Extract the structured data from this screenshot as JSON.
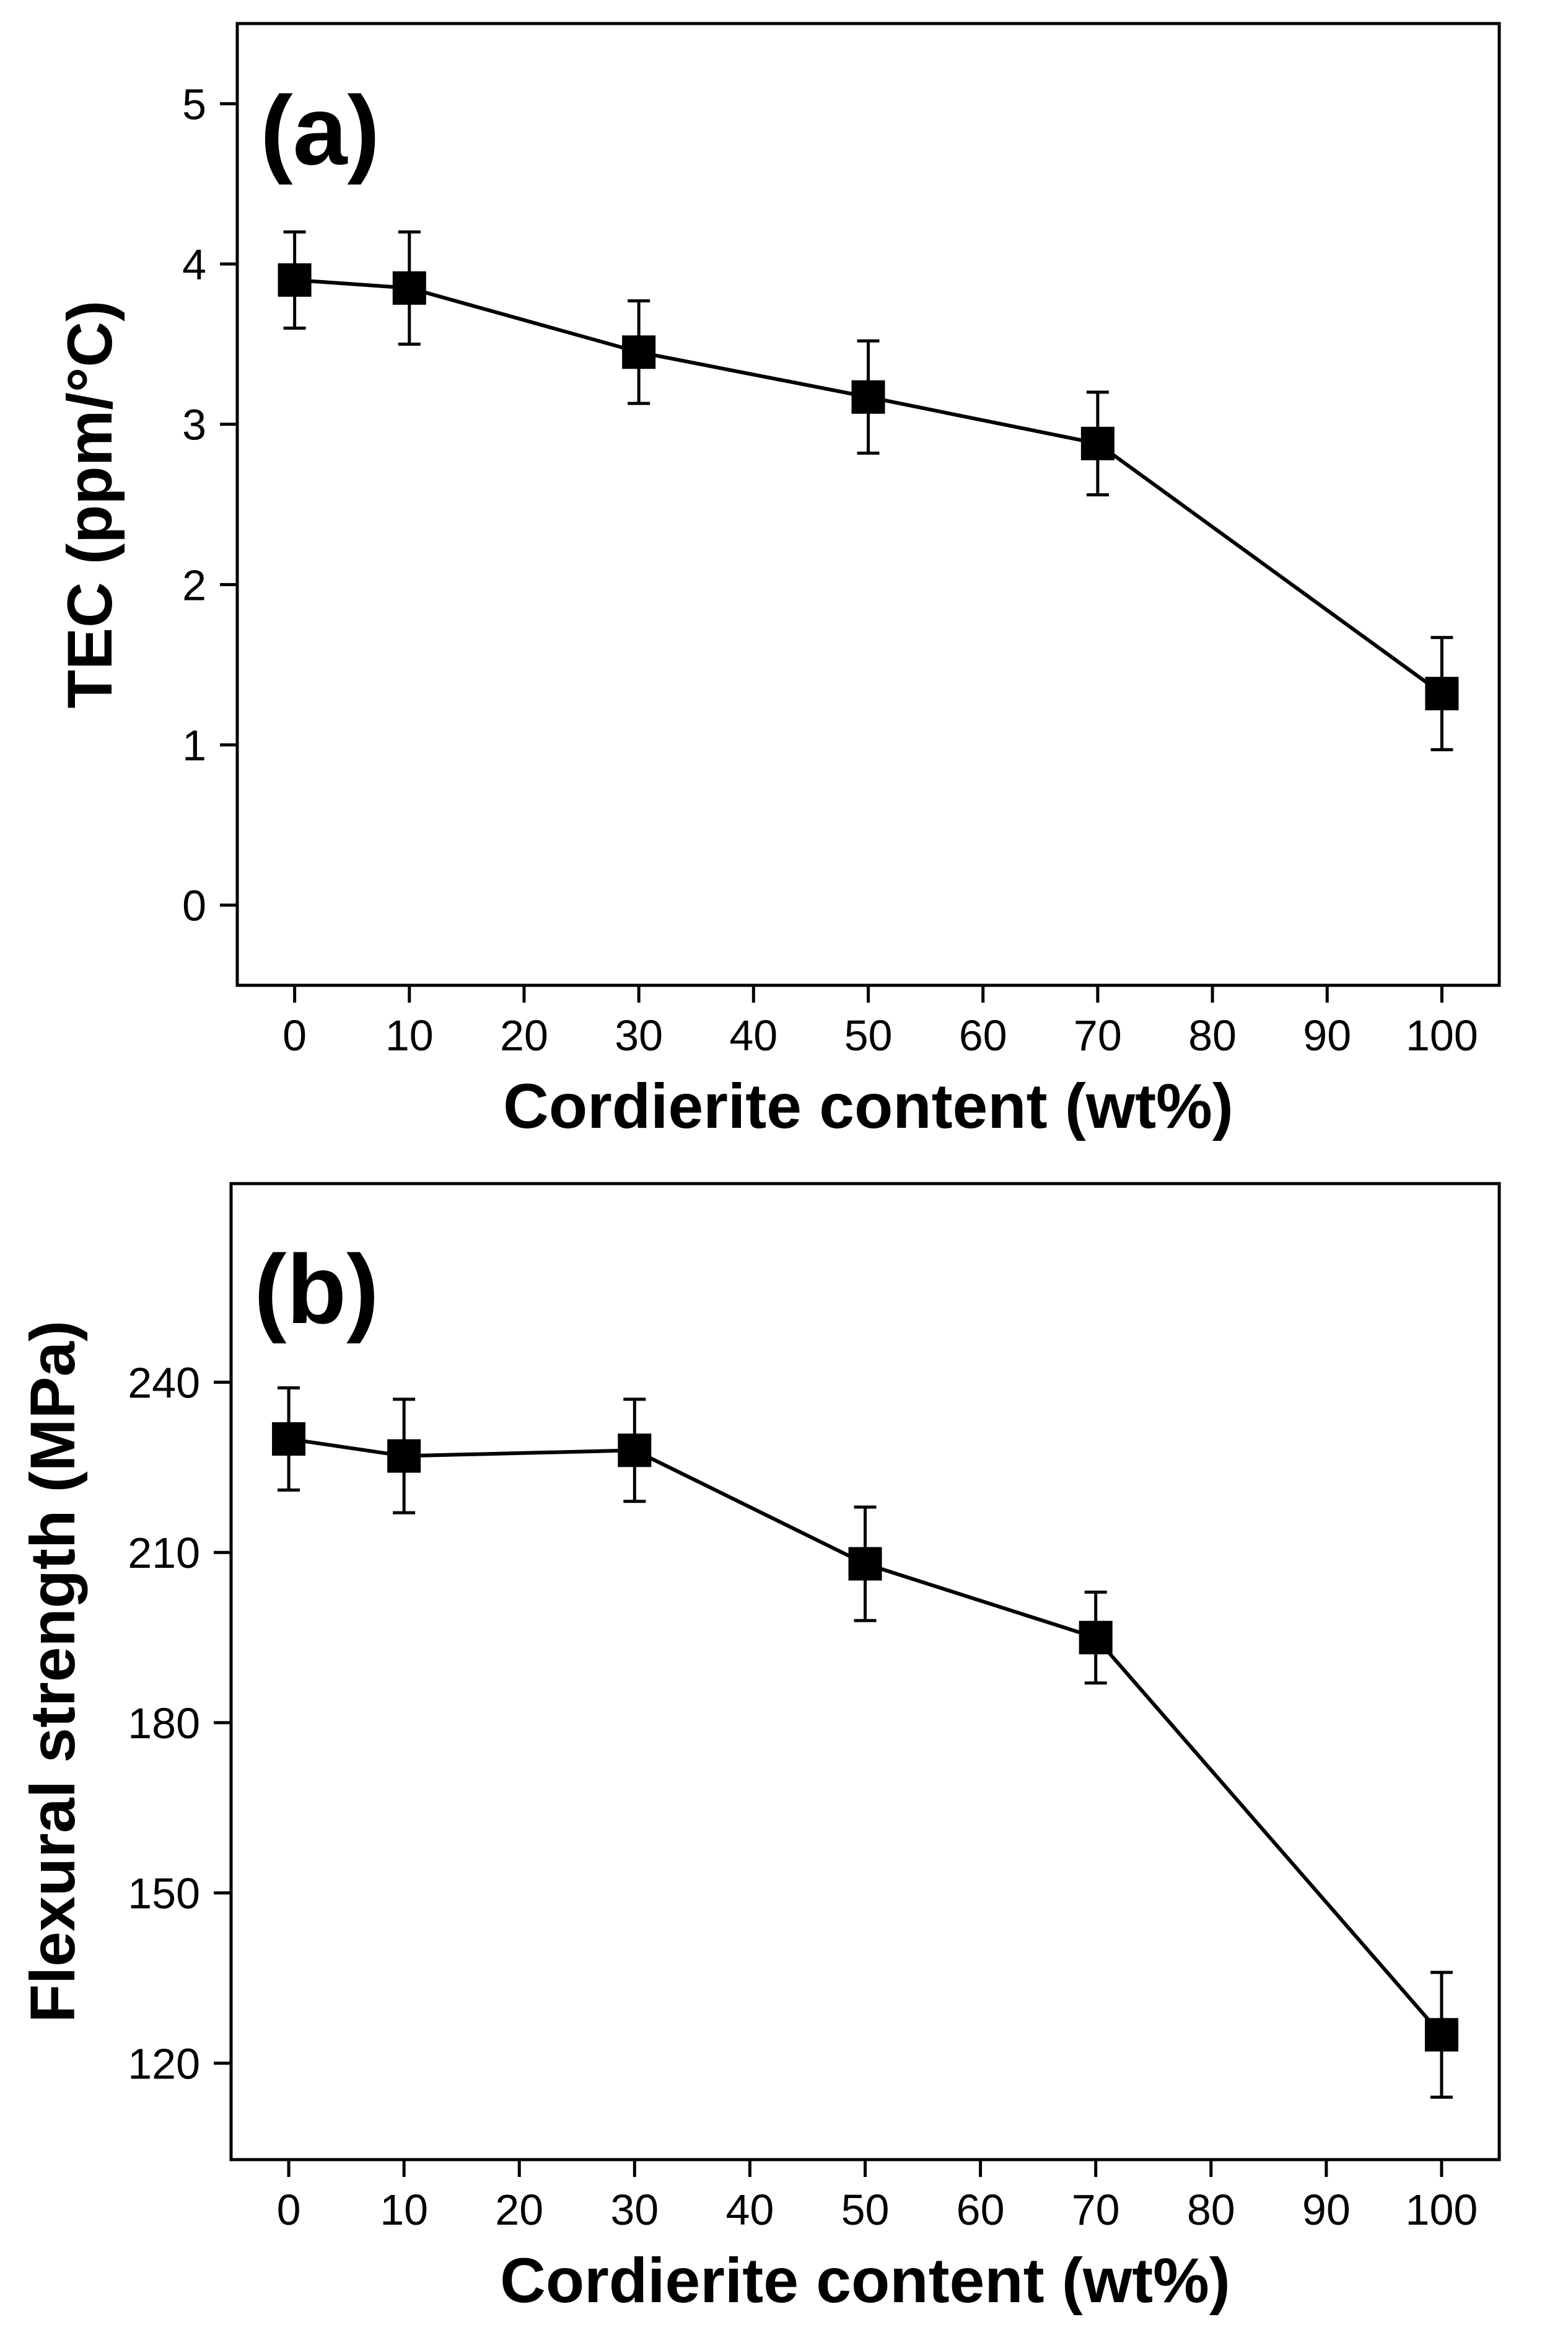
{
  "chart_data": [
    {
      "panel": "(a)",
      "type": "line",
      "xlabel": "Cordierite content (wt%)",
      "ylabel": "TEC (ppm/°C)",
      "xlim": [
        -5,
        105
      ],
      "ylim": [
        -0.5,
        5.5
      ],
      "xticks": [
        0,
        10,
        20,
        30,
        40,
        50,
        60,
        70,
        80,
        90,
        100
      ],
      "yticks": [
        0,
        1,
        2,
        3,
        4,
        5
      ],
      "series": [
        {
          "x": [
            0,
            10,
            30,
            50,
            70,
            100
          ],
          "y": [
            3.9,
            3.85,
            3.45,
            3.17,
            2.88,
            1.32
          ],
          "error": [
            0.3,
            0.35,
            0.32,
            0.35,
            0.32,
            0.35
          ]
        }
      ]
    },
    {
      "panel": "(b)",
      "type": "line",
      "xlabel": "Cordierite content (wt%)",
      "ylabel": "Flexural strength (MPa)",
      "xlim": [
        -5,
        105
      ],
      "ylim": [
        103,
        275
      ],
      "xticks": [
        0,
        10,
        20,
        30,
        40,
        50,
        60,
        70,
        80,
        90,
        100
      ],
      "yticks": [
        120,
        150,
        180,
        210,
        240
      ],
      "series": [
        {
          "x": [
            0,
            10,
            30,
            50,
            70,
            100
          ],
          "y": [
            230,
            227,
            228,
            208,
            195,
            125
          ],
          "error": [
            9,
            10,
            9,
            10,
            8,
            11
          ]
        }
      ]
    }
  ]
}
